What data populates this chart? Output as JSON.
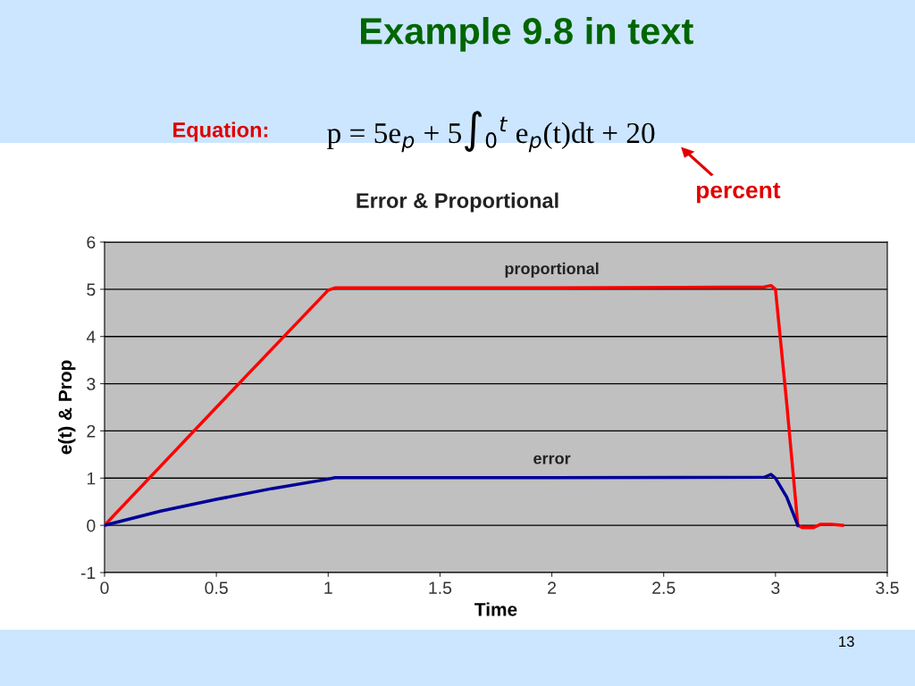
{
  "chart_data": {
    "type": "line",
    "title": "Example 9.8 in text",
    "subtitle": "Error & Proportional",
    "xlabel": "Time",
    "ylabel": "e(t) & Prop",
    "annotations": [
      "Equation:",
      "p = 5e$_{p}$ + 5∫$_{0}$$^{t}$ e$_{p}$(t)dt + 20",
      "percent",
      "13"
    ],
    "series": [
      {
        "name": "proportional",
        "color": "#ff0000",
        "x": [
          0,
          0.5,
          1.0,
          1.03,
          2.0,
          2.95,
          2.98,
          3.0,
          3.05,
          3.1,
          3.12,
          3.17,
          3.2,
          3.25,
          3.3
        ],
        "values": [
          0,
          2.5,
          4.98,
          5.03,
          5.03,
          5.05,
          5.08,
          5.0,
          2.6,
          0,
          -0.05,
          -0.05,
          0.02,
          0.02,
          0
        ]
      },
      {
        "name": "error",
        "color": "#000099",
        "x": [
          0,
          0.25,
          0.5,
          0.75,
          1.0,
          1.03,
          2.0,
          2.95,
          2.98,
          3.0,
          3.05,
          3.1
        ],
        "values": [
          0,
          0.3,
          0.55,
          0.78,
          0.98,
          1.01,
          1.01,
          1.02,
          1.08,
          1.0,
          0.6,
          0
        ]
      }
    ],
    "xlim": [
      0,
      3.5
    ],
    "xticks": [
      0,
      0.5,
      1,
      1.5,
      2,
      2.5,
      3,
      3.5
    ],
    "ylim": [
      -1,
      6
    ],
    "yticks": [
      -1,
      0,
      1,
      2,
      3,
      4,
      5,
      6
    ],
    "grid": "y",
    "legend": false,
    "marker": "none",
    "line_style": "solid"
  }
}
